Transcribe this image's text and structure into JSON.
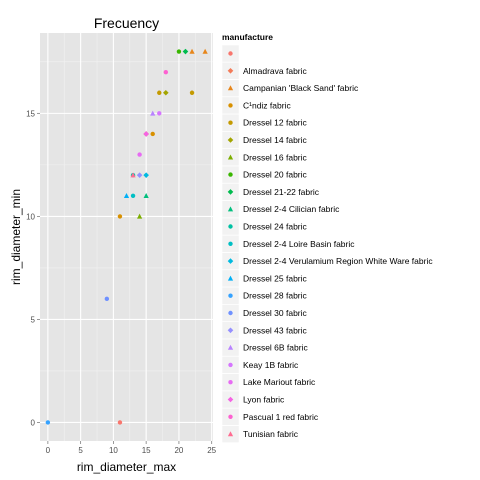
{
  "chart_data": {
    "type": "scatter",
    "title": "Frecuency",
    "xlabel": "rim_diameter_max",
    "ylabel": "rim_diameter_min",
    "xlim": [
      -1.2,
      25.2
    ],
    "ylim": [
      -0.9,
      18.9
    ],
    "x_ticks": [
      0,
      5,
      10,
      15,
      20,
      25
    ],
    "y_ticks": [
      0,
      5,
      10,
      15
    ],
    "grid": true,
    "legend_title": "manufacture",
    "legend_position": "right",
    "series": [
      {
        "name": "",
        "color": "#F8766D",
        "shape": "circle",
        "points": [
          [
            11,
            0
          ]
        ]
      },
      {
        "name": "Almadrava fabric",
        "color": "#F37B59",
        "shape": "diamond",
        "points": [
          [
            15,
            14
          ]
        ]
      },
      {
        "name": "Campanian 'Black Sand' fabric",
        "color": "#E7861B",
        "shape": "triangle",
        "points": [
          [
            22,
            18
          ],
          [
            24,
            18
          ]
        ]
      },
      {
        "name": "C¹ndiz fabric",
        "color": "#D89000",
        "shape": "circle",
        "points": [
          [
            11,
            10
          ],
          [
            16,
            14
          ]
        ]
      },
      {
        "name": "Dressel 12 fabric",
        "color": "#C49A00",
        "shape": "circle",
        "points": [
          [
            17,
            16
          ],
          [
            22,
            16
          ]
        ]
      },
      {
        "name": "Dressel 14 fabric",
        "color": "#A3A500",
        "shape": "diamond",
        "points": [
          [
            18,
            16
          ]
        ]
      },
      {
        "name": "Dressel 16 fabric",
        "color": "#7CAE00",
        "shape": "triangle",
        "points": [
          [
            14,
            10
          ]
        ]
      },
      {
        "name": "Dressel 20 fabric",
        "color": "#39B600",
        "shape": "circle",
        "points": [
          [
            20,
            18
          ]
        ]
      },
      {
        "name": "Dressel 21-22 fabric",
        "color": "#00BB4E",
        "shape": "diamond",
        "points": [
          [
            21,
            18
          ]
        ]
      },
      {
        "name": "Dressel 2-4 Cilician fabric",
        "color": "#00BF7D",
        "shape": "triangle",
        "points": [
          [
            15,
            11
          ]
        ]
      },
      {
        "name": "Dressel 24 fabric",
        "color": "#00C1A3",
        "shape": "circle",
        "points": [
          [
            13,
            12
          ]
        ]
      },
      {
        "name": "Dressel 2-4 Loire Basin fabric",
        "color": "#00BFC4",
        "shape": "circle",
        "points": [
          [
            13,
            11
          ]
        ]
      },
      {
        "name": "Dressel 2-4 Verulamium Region White Ware fabric",
        "color": "#00BAE0",
        "shape": "diamond",
        "points": [
          [
            15,
            12
          ]
        ]
      },
      {
        "name": "Dressel 25 fabric",
        "color": "#00B0F6",
        "shape": "triangle",
        "points": [
          [
            12,
            11
          ]
        ]
      },
      {
        "name": "Dressel 28 fabric",
        "color": "#35A2FF",
        "shape": "circle",
        "points": [
          [
            0,
            0
          ]
        ]
      },
      {
        "name": "Dressel 30 fabric",
        "color": "#6F91FF",
        "shape": "circle",
        "points": [
          [
            9,
            6
          ]
        ]
      },
      {
        "name": "Dressel 43 fabric",
        "color": "#9590FF",
        "shape": "diamond",
        "points": [
          [
            14,
            12
          ]
        ]
      },
      {
        "name": "Dressel 6B fabric",
        "color": "#B983FF",
        "shape": "triangle",
        "points": [
          [
            16,
            15
          ]
        ]
      },
      {
        "name": "Keay 1B fabric",
        "color": "#D575FE",
        "shape": "circle",
        "points": [
          [
            17,
            15
          ]
        ]
      },
      {
        "name": "Lake Mariout fabric",
        "color": "#E76BF3",
        "shape": "circle",
        "points": [
          [
            14,
            13
          ]
        ]
      },
      {
        "name": "Lyon fabric",
        "color": "#F564E3",
        "shape": "diamond",
        "points": [
          [
            15,
            14
          ]
        ]
      },
      {
        "name": "Pascual 1 red fabric",
        "color": "#FD61D1",
        "shape": "circle",
        "points": [
          [
            18,
            17
          ]
        ]
      },
      {
        "name": "Tunisian fabric",
        "color": "#FF6C91",
        "shape": "triangle",
        "points": [
          [
            13,
            12
          ]
        ]
      }
    ]
  }
}
